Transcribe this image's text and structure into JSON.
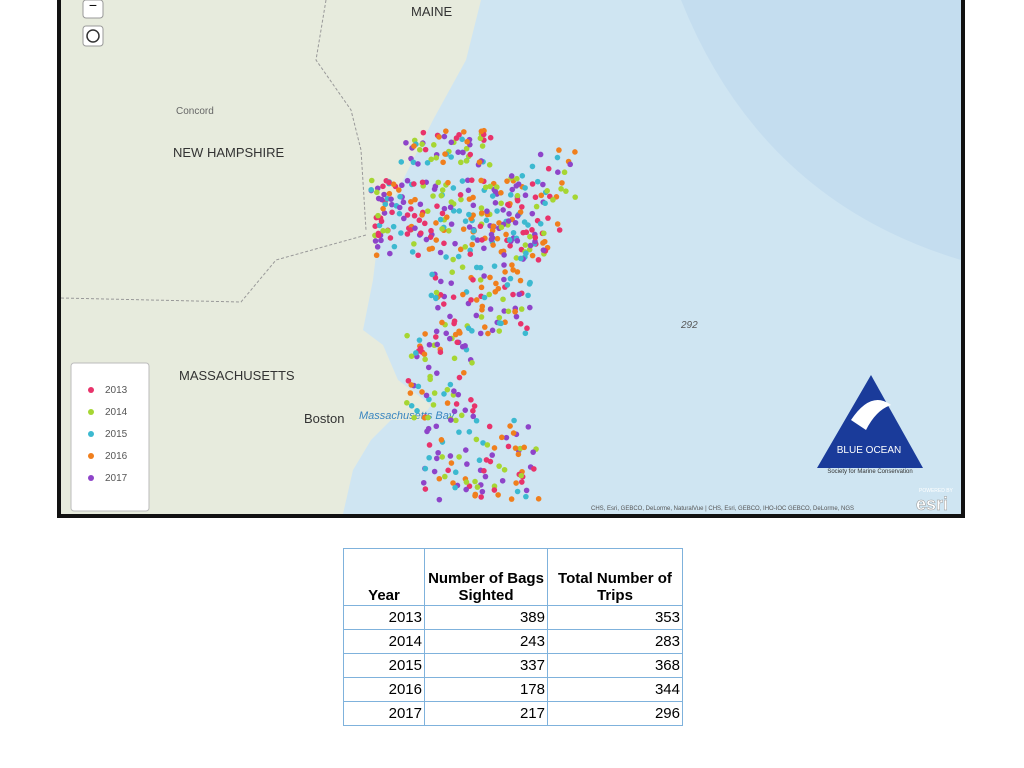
{
  "map": {
    "labels": {
      "state_maine": "MAINE",
      "city_concord": "Concord",
      "state_nh": "NEW HAMPSHIRE",
      "state_ma": "MASSACHUSETTS",
      "city_boston": "Boston",
      "bay": "Massachusetts Bay",
      "depth": "292"
    },
    "zoom_out": "−",
    "legend": [
      {
        "label": "2013",
        "color": "#e8336b"
      },
      {
        "label": "2014",
        "color": "#a6d633"
      },
      {
        "label": "2015",
        "color": "#3cb9d0"
      },
      {
        "label": "2016",
        "color": "#f07f1d"
      },
      {
        "label": "2017",
        "color": "#8e44c9"
      }
    ],
    "attribution": "CHS, Esri, GEBCO, DeLorme, NaturalVue | CHS, Esri, GEBCO, IHO-IOC GEBCO, DeLorme, NGS",
    "esri_powered": "POWERED BY",
    "esri": "esri",
    "logo": {
      "name": "BLUE OCEAN",
      "tagline": "Society for Marine Conservation"
    }
  },
  "table": {
    "header": [
      "Year",
      "Number of Bags Sighted",
      "Total Number of Trips"
    ],
    "rows": [
      [
        "2013",
        "389",
        "353"
      ],
      [
        "2014",
        "243",
        "283"
      ],
      [
        "2015",
        "337",
        "368"
      ],
      [
        "2016",
        "178",
        "344"
      ],
      [
        "2017",
        "217",
        "296"
      ]
    ]
  }
}
